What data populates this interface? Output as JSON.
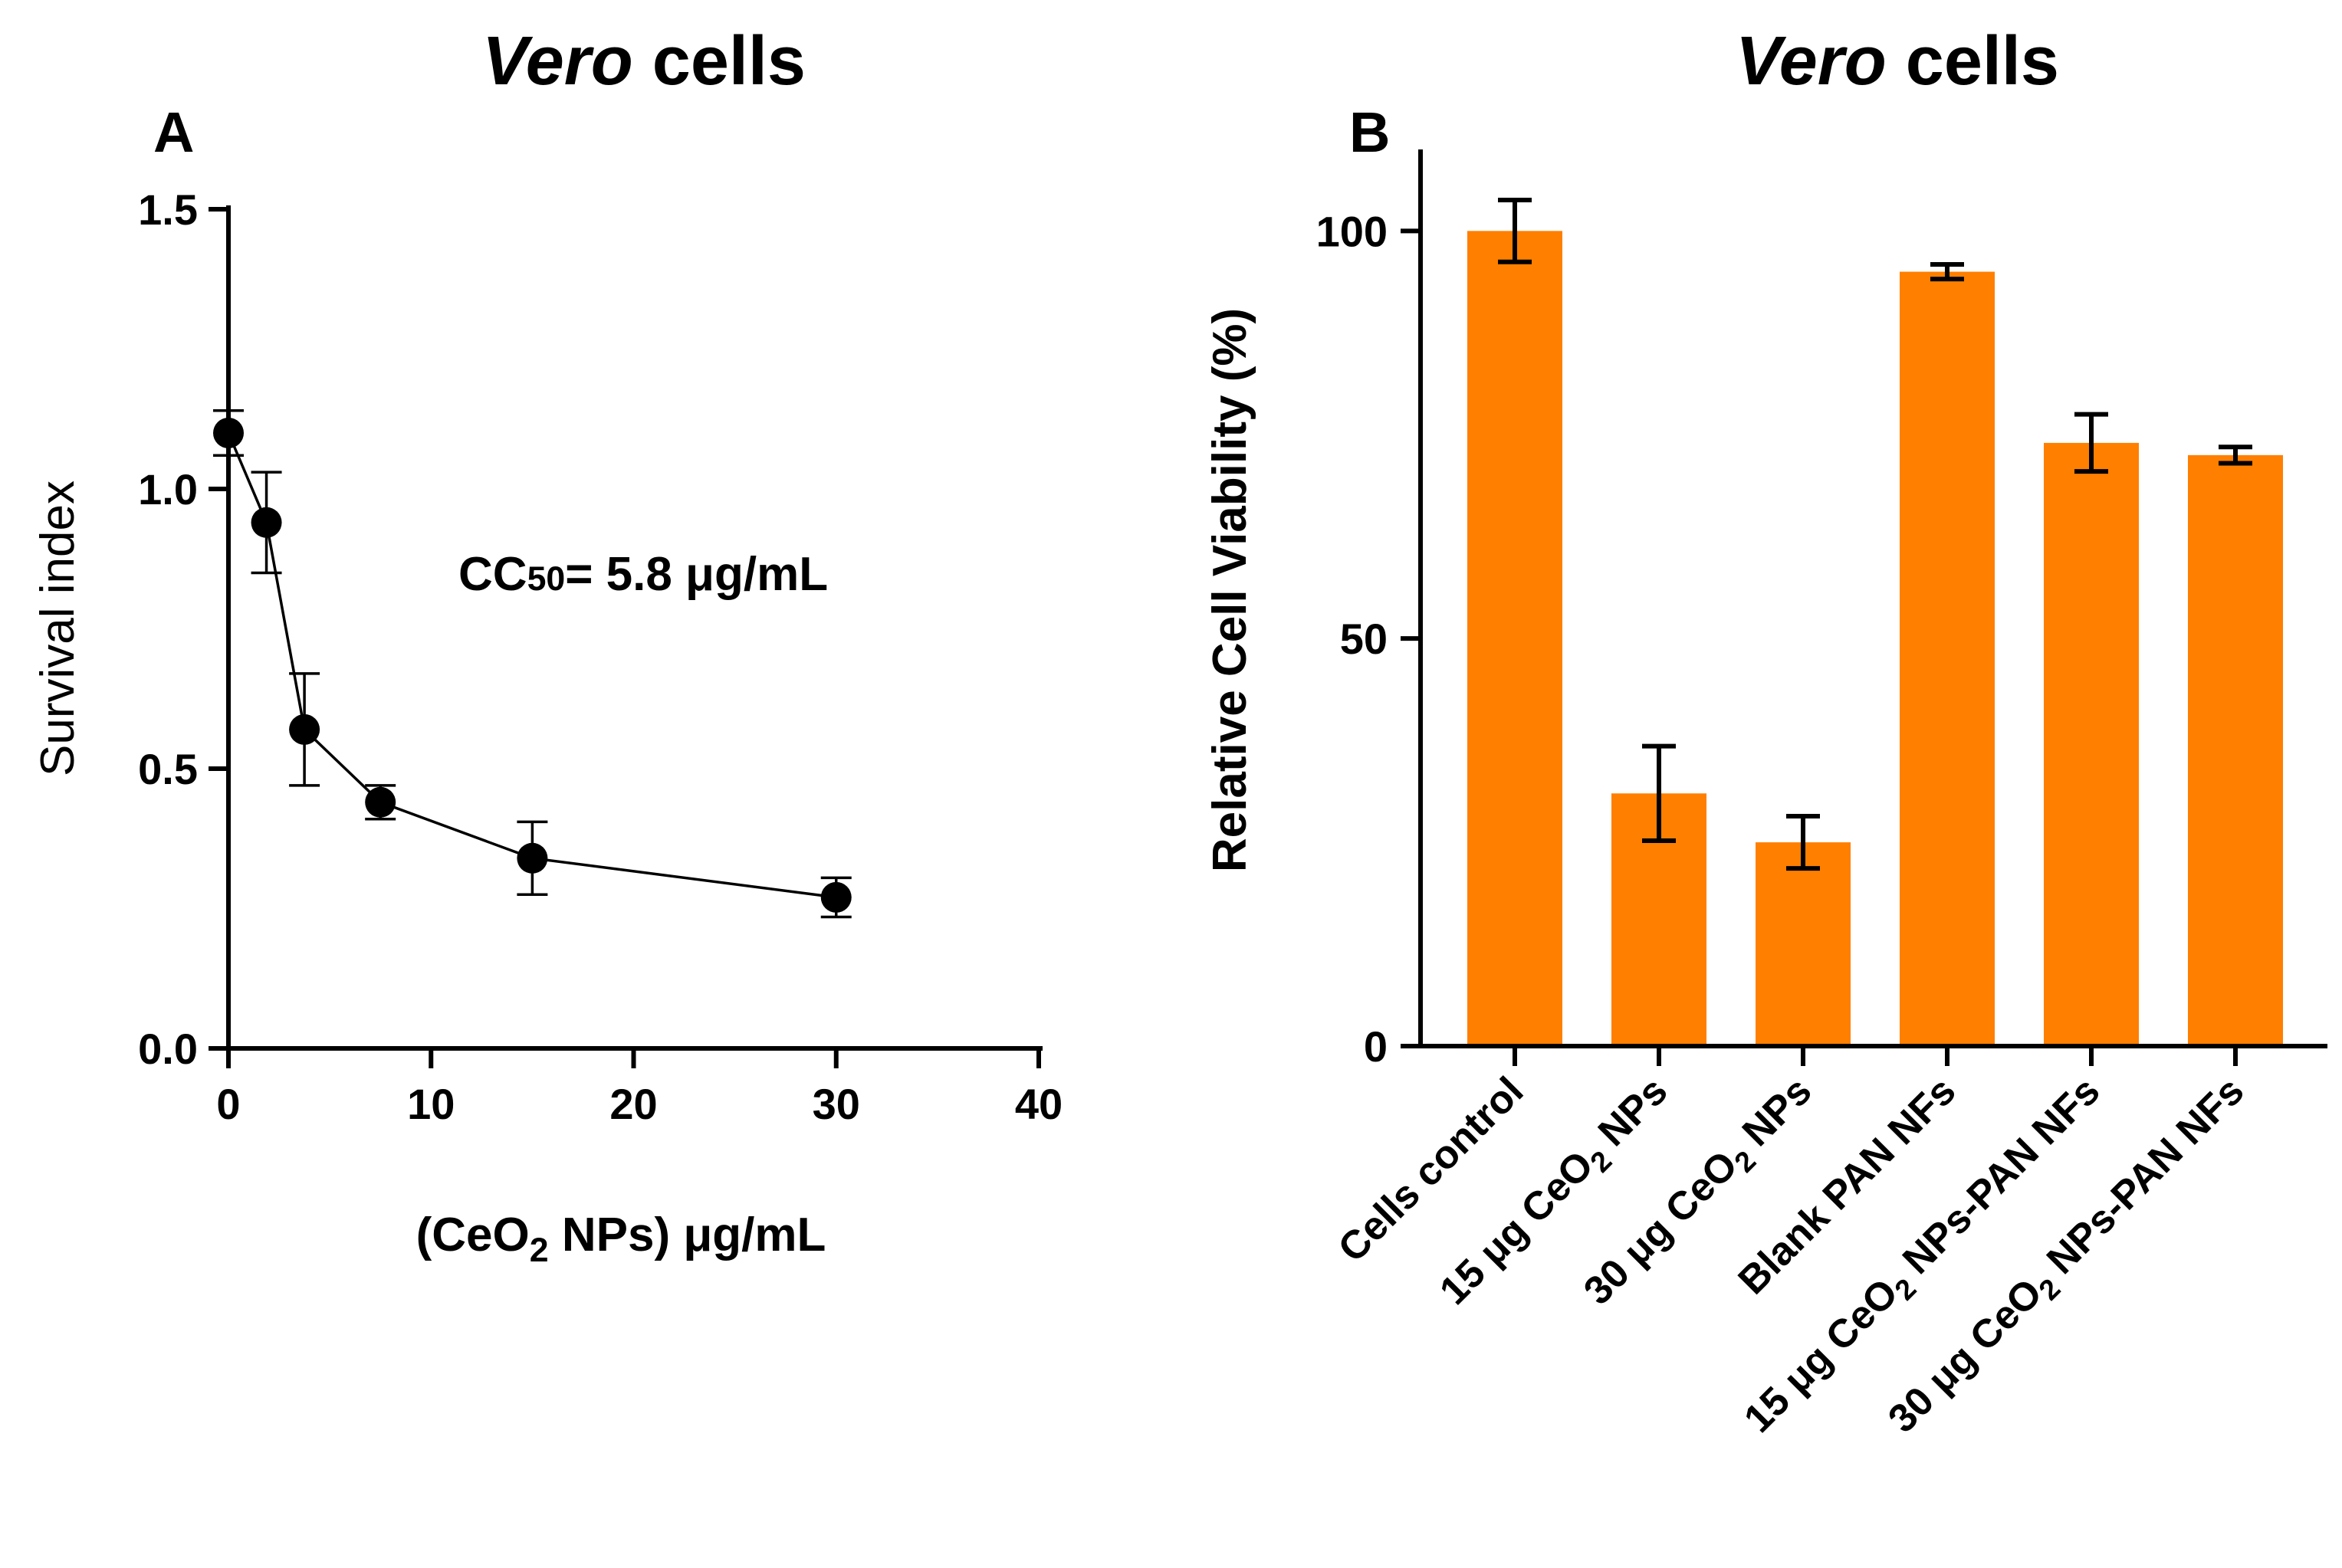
{
  "chart_data": [
    {
      "panel": "A",
      "type": "line",
      "title_italic": "Vero",
      "title_rest": " cells",
      "xlabel_pre": "(CeO",
      "xlabel_sub": "2",
      "xlabel_post": " NPs) μg/mL",
      "ylabel": "Survival index",
      "xlim": [
        0,
        40
      ],
      "ylim": [
        0,
        1.5
      ],
      "xticks": [
        0,
        10,
        20,
        30,
        40
      ],
      "xtick_labels": [
        "0",
        "10",
        "20",
        "30",
        "40"
      ],
      "yticks": [
        0,
        0.5,
        1.0,
        1.5
      ],
      "ytick_labels": [
        "0.0",
        "0.5",
        "1.0",
        "1.5"
      ],
      "annotation_main": "CC",
      "annotation_sub": "50",
      "annotation_rest": "= 5.8 μg/mL",
      "series": [
        {
          "name": "CeO2 NPs",
          "x": [
            0,
            1.875,
            3.75,
            7.5,
            15,
            30
          ],
          "y": [
            1.1,
            0.94,
            0.57,
            0.44,
            0.34,
            0.27
          ],
          "err": [
            0.04,
            0.09,
            0.1,
            0.03,
            0.065,
            0.035
          ]
        }
      ]
    },
    {
      "panel": "B",
      "type": "bar",
      "title_italic": "Vero",
      "title_rest": " cells",
      "ylabel": "Relative Cell Viability (%)",
      "ylim": [
        0,
        110
      ],
      "yticks": [
        0,
        50,
        100
      ],
      "ytick_labels": [
        "0",
        "50",
        "100"
      ],
      "bar_color": "#FF7F00",
      "categories": [
        {
          "pre": "Cells control",
          "sub": "",
          "post": ""
        },
        {
          "pre": "15 μg CeO",
          "sub": "2",
          "post": " NPs"
        },
        {
          "pre": "30 μg CeO",
          "sub": "2",
          "post": " NPs"
        },
        {
          "pre": "Blank PAN NFs",
          "sub": "",
          "post": ""
        },
        {
          "pre": "15 μg CeO",
          "sub": "2",
          "post": " NPs-PAN NFs"
        },
        {
          "pre": "30 μg CeO",
          "sub": "2",
          "post": " NPs-PAN NFs"
        }
      ],
      "values": [
        100,
        31,
        25,
        95,
        74,
        72.5
      ],
      "err": [
        3.8,
        5.8,
        3.2,
        0.9,
        3.5,
        1.0
      ]
    }
  ]
}
